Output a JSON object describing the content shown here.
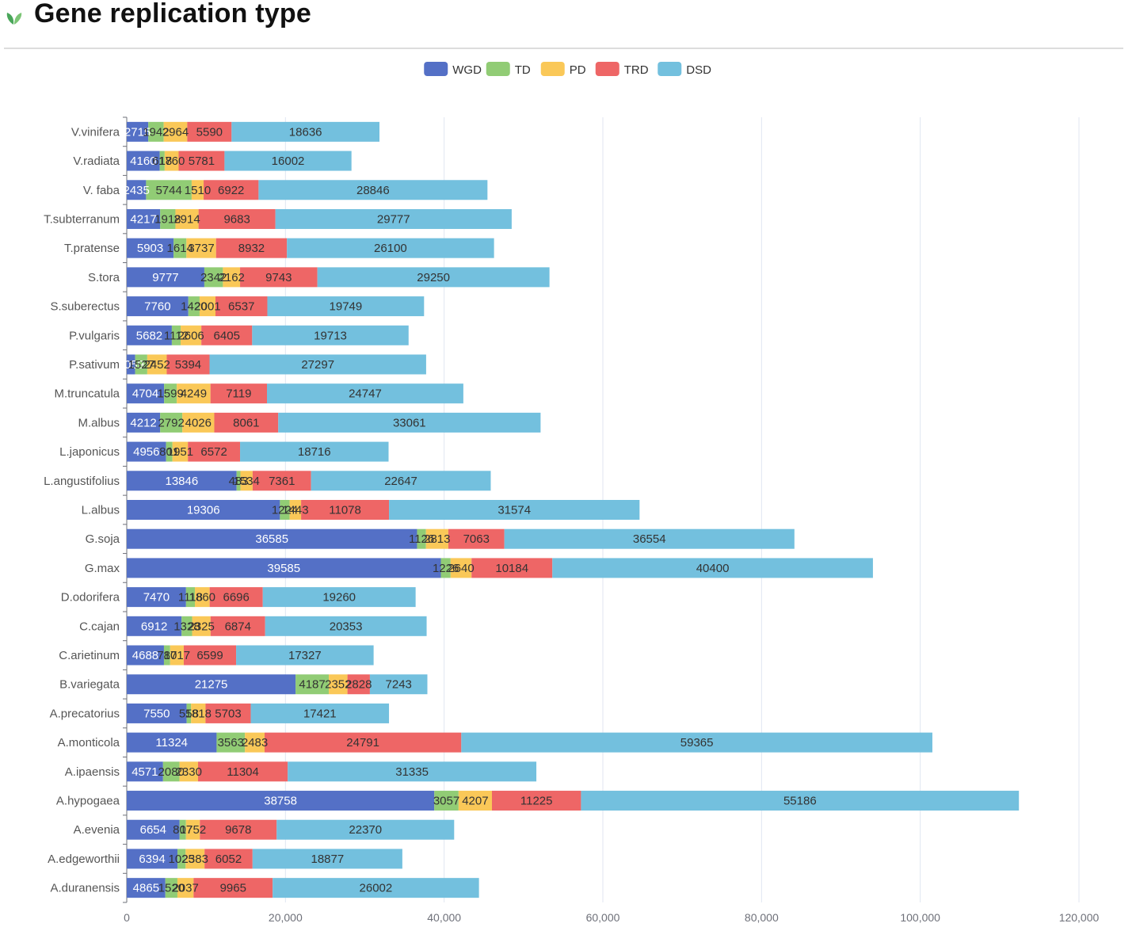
{
  "page": {
    "title": "Gene replication type",
    "icon": "leaf-icon"
  },
  "chart_data": {
    "type": "bar",
    "orientation": "horizontal",
    "stacked": true,
    "grid": true,
    "legend_position": "top-center",
    "xlim": [
      0,
      120000
    ],
    "x_ticks": [
      "0",
      "20,000",
      "40,000",
      "60,000",
      "80,000",
      "100,000",
      "120,000"
    ],
    "categories": [
      "A.duranensis",
      "A.edgeworthii",
      "A.evenia",
      "A.hypogaea",
      "A.ipaensis",
      "A.monticola",
      "A.precatorius",
      "B.variegata",
      "C.arietinum",
      "C.cajan",
      "D.odorifera",
      "G.max",
      "G.soja",
      "L.albus",
      "L.angustifolius",
      "L.japonicus",
      "M.albus",
      "M.truncatula",
      "P.sativum",
      "P.vulgaris",
      "S.suberectus",
      "S.tora",
      "T.pratense",
      "T.subterranum",
      "V. faba",
      "V.radiata",
      "V.vinifera"
    ],
    "series": [
      {
        "name": "WGD",
        "color": "#5470c6",
        "label_color": "#ffffff",
        "values": [
          4865,
          6394,
          6654,
          38758,
          4571,
          11324,
          7550,
          21275,
          4688,
          6912,
          7470,
          39585,
          36585,
          19306,
          13846,
          4956,
          4212,
          4704,
          1059,
          5682,
          7760,
          9777,
          5903,
          4217,
          2435,
          4160,
          2715
        ]
      },
      {
        "name": "TD",
        "color": "#91cc75",
        "label_color": "#333333",
        "values": [
          1520,
          1025,
          807,
          3057,
          2080,
          3563,
          558,
          4187,
          780,
          1328,
          1118,
          1226,
          1126,
          1224,
          483,
          801,
          2792,
          1599,
          1527,
          1112,
          1420,
          2342,
          1614,
          1918,
          5744,
          618,
          1942
        ]
      },
      {
        "name": "PD",
        "color": "#fac858",
        "label_color": "#333333",
        "values": [
          2037,
          2383,
          1752,
          4207,
          2330,
          2483,
          1818,
          2352,
          1717,
          2325,
          1860,
          2640,
          2813,
          1443,
          1534,
          1951,
          4026,
          4249,
          2452,
          2606,
          2001,
          2162,
          3737,
          2914,
          1510,
          1760,
          2964
        ]
      },
      {
        "name": "TRD",
        "color": "#ee6666",
        "label_color": "#333333",
        "values": [
          9965,
          6052,
          9678,
          11225,
          11304,
          24791,
          5703,
          2828,
          6599,
          6874,
          6696,
          10184,
          7063,
          11078,
          7361,
          6572,
          8061,
          7119,
          5394,
          6405,
          6537,
          9743,
          8932,
          9683,
          6922,
          5781,
          5590
        ]
      },
      {
        "name": "DSD",
        "color": "#73c0de",
        "label_color": "#333333",
        "values": [
          26002,
          18877,
          22370,
          55186,
          31335,
          59365,
          17421,
          7243,
          17327,
          20353,
          19260,
          40400,
          36554,
          31574,
          22647,
          18716,
          33061,
          24747,
          27297,
          19713,
          19749,
          29250,
          26100,
          29777,
          28846,
          16002,
          18636
        ]
      }
    ]
  }
}
